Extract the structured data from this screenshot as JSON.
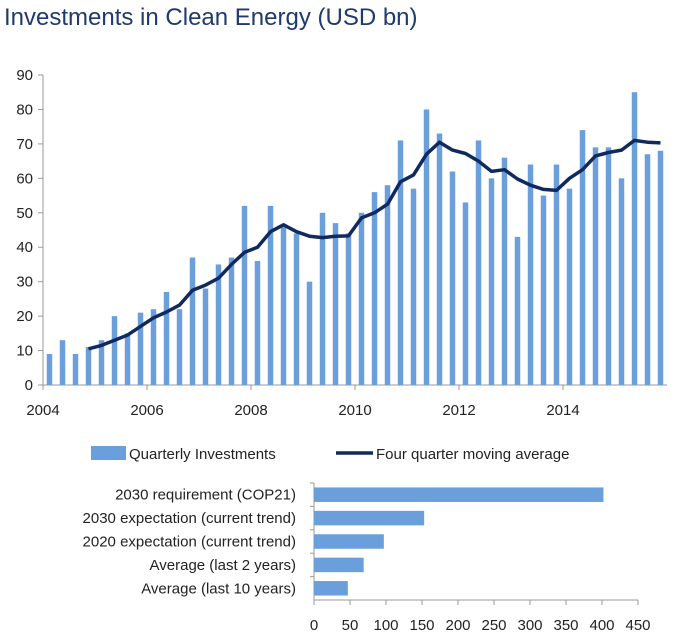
{
  "title": "Investments in Clean Energy (USD bn)",
  "colors": {
    "bar": "#6a9fdc",
    "line": "#10295e",
    "axis": "#9a9a9a",
    "title": "#1f3a6e"
  },
  "legend": {
    "bars": "Quarterly Investments",
    "line": "Four quarter moving average"
  },
  "chart_data": [
    {
      "type": "bar",
      "xaxis": "quarters",
      "xlim": [
        2004,
        2016
      ],
      "ylim": [
        0,
        90
      ],
      "yticks": [
        0,
        10,
        20,
        30,
        40,
        50,
        60,
        70,
        80,
        90
      ],
      "xticks": [
        2004,
        2006,
        2008,
        2010,
        2012,
        2014
      ],
      "legend_position": "bottom",
      "grid": false,
      "series": [
        {
          "name": "Quarterly Investments",
          "type": "bar",
          "start": 2004.0,
          "step": 0.25,
          "values": [
            9,
            13,
            9,
            11,
            13,
            20,
            15,
            21,
            22,
            27,
            22,
            37,
            28,
            35,
            37,
            52,
            36,
            52,
            46,
            44,
            30,
            50,
            47,
            44,
            50,
            56,
            58,
            71,
            57,
            80,
            73,
            62,
            53,
            71,
            60,
            66,
            43,
            64,
            55,
            64,
            57,
            74,
            69,
            69,
            60,
            85,
            67,
            68
          ]
        },
        {
          "name": "Four quarter moving average",
          "type": "line",
          "start": 2004.75,
          "step": 0.25,
          "values": [
            10.5,
            11.5,
            13,
            14.5,
            17,
            19.5,
            21.2,
            23.2,
            27.5,
            29,
            31,
            35,
            38.5,
            40,
            44.5,
            46.5,
            44.5,
            43.2,
            42.8,
            43.2,
            43.3,
            48.5,
            50,
            52.5,
            59,
            61,
            67,
            70.5,
            68.2,
            67.2,
            65,
            62,
            62.5,
            59.8,
            58,
            56.8,
            56.5,
            60,
            62.5,
            66.5,
            67.5,
            68.2,
            71,
            70.5,
            70.3
          ]
        }
      ]
    },
    {
      "type": "bar",
      "orientation": "horizontal",
      "categories": [
        "2030 requirement (COP21)",
        "2030 expectation (current trend)",
        "2020 expectation (current trend)",
        "Average (last 2 years)",
        "Average (last 10 years)"
      ],
      "values": [
        402,
        153,
        97,
        69,
        47
      ],
      "xlim": [
        0,
        450
      ],
      "xticks": [
        0,
        50,
        100,
        150,
        200,
        250,
        300,
        350,
        400,
        450
      ],
      "grid": false
    }
  ]
}
